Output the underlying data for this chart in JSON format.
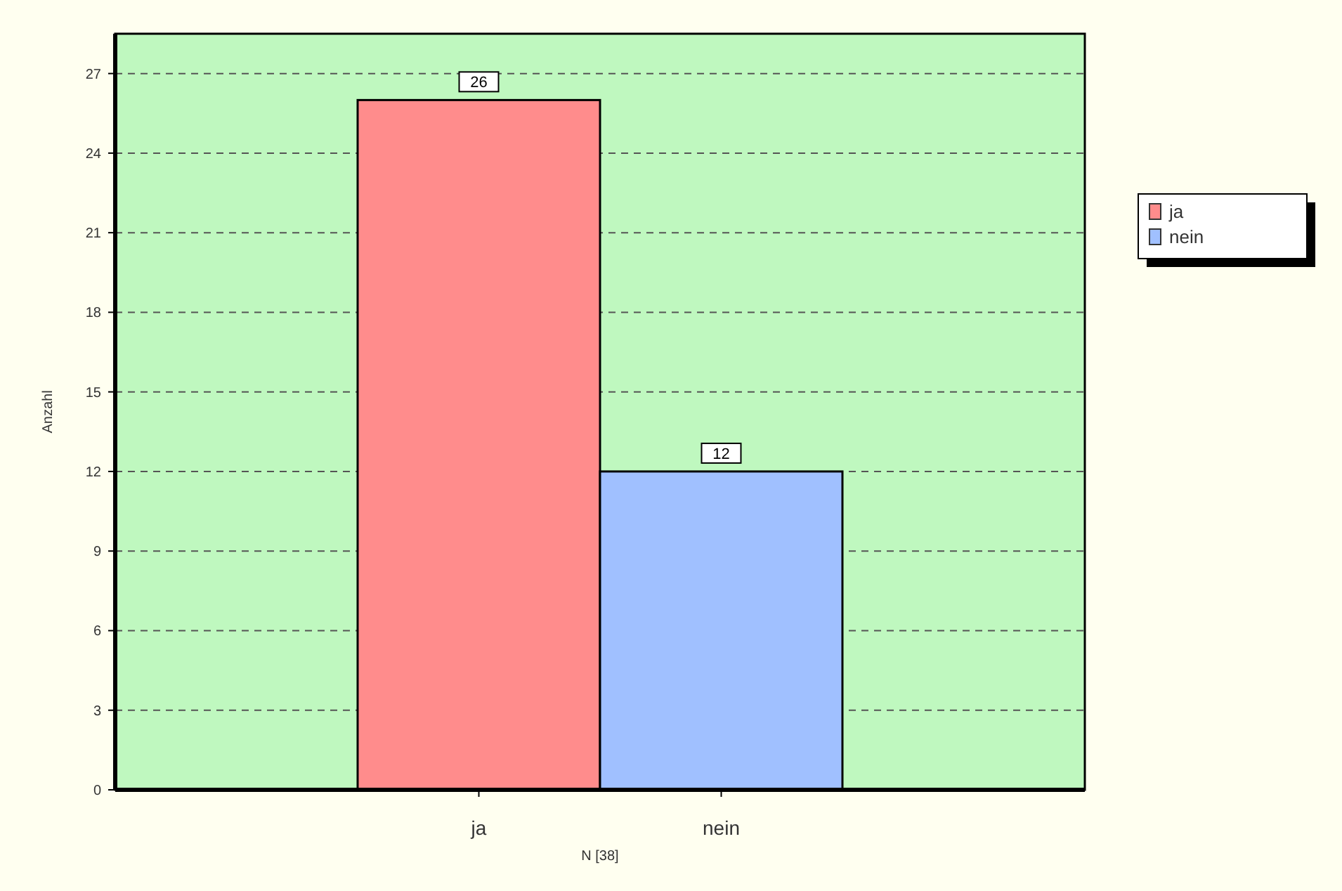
{
  "chart_data": {
    "type": "bar",
    "ylabel": "Anzahl",
    "xlabel": "N [38]",
    "categories": [
      "ja",
      "nein"
    ],
    "series": [
      {
        "name": "ja",
        "color": "#ff8c8c",
        "values": [
          26,
          null
        ]
      },
      {
        "name": "nein",
        "color": "#a0c0ff",
        "values": [
          null,
          12
        ]
      }
    ],
    "ylim": [
      0,
      28.5
    ],
    "yticks": [
      0,
      3,
      6,
      9,
      12,
      15,
      18,
      21,
      24,
      27
    ],
    "grid": "y",
    "legend": "right",
    "data_labels": true
  }
}
